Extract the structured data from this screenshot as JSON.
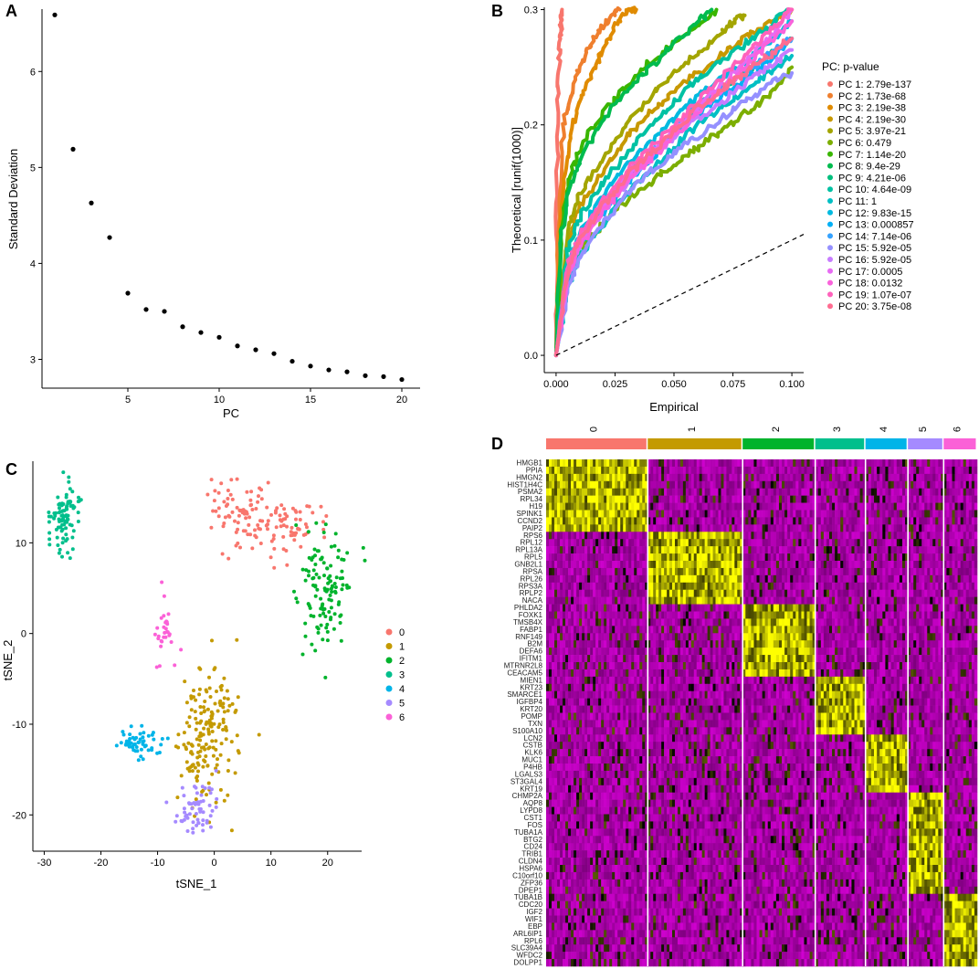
{
  "chart_data": [
    {
      "panel": "A",
      "type": "scatter",
      "title": "",
      "xlabel": "PC",
      "ylabel": "Standard Deviation",
      "xlim": [
        0.3,
        21.0
      ],
      "ylim": [
        2.7,
        6.65
      ],
      "xticks": [
        5,
        10,
        15,
        20
      ],
      "yticks": [
        3,
        4,
        5,
        6
      ],
      "x": [
        1,
        2,
        3,
        4,
        5,
        6,
        7,
        8,
        9,
        10,
        11,
        12,
        13,
        14,
        15,
        16,
        17,
        18,
        19,
        20
      ],
      "y": [
        6.59,
        5.19,
        4.63,
        4.27,
        3.69,
        3.52,
        3.5,
        3.34,
        3.28,
        3.23,
        3.14,
        3.1,
        3.06,
        2.98,
        2.93,
        2.89,
        2.87,
        2.83,
        2.82,
        2.79
      ],
      "color": "#000000"
    },
    {
      "panel": "B",
      "type": "line",
      "title": "",
      "xlabel": "Empirical",
      "ylabel": "Theoretical [runif(1000)]",
      "xlim": [
        -0.005,
        0.105
      ],
      "ylim": [
        -0.015,
        0.302
      ],
      "xticks": [
        "0.000",
        "0.025",
        "0.050",
        "0.075",
        "0.100"
      ],
      "yticks": [
        "0.0",
        "0.1",
        "0.2",
        "0.3"
      ],
      "legend_title": "PC: p-value",
      "reference_line": "dashed y = x",
      "series": [
        {
          "name": "PC 1: 2.79e-137",
          "color": "#F8766D",
          "x": [
            0,
            0.0003,
            0.0008,
            0.0013,
            0.0018,
            0.0022,
            0.0025
          ],
          "y": [
            0,
            0.12,
            0.22,
            0.26,
            0.28,
            0.29,
            0.3
          ]
        },
        {
          "name": "PC 2: 1.73e-68",
          "color": "#EF7F2E",
          "x": [
            0,
            0.002,
            0.004,
            0.007,
            0.011,
            0.016,
            0.022,
            0.027
          ],
          "y": [
            0,
            0.17,
            0.21,
            0.23,
            0.255,
            0.275,
            0.29,
            0.3
          ]
        },
        {
          "name": "PC 3: 2.19e-38",
          "color": "#E08B00",
          "x": [
            0,
            0.003,
            0.006,
            0.01,
            0.015,
            0.02,
            0.025,
            0.03,
            0.034
          ],
          "y": [
            0,
            0.15,
            0.19,
            0.22,
            0.245,
            0.265,
            0.285,
            0.298,
            0.3
          ]
        },
        {
          "name": "PC 4: 2.19e-30",
          "color": "#C79800",
          "x": [
            0,
            0.005,
            0.01,
            0.02,
            0.03,
            0.04,
            0.05,
            0.06,
            0.07,
            0.08,
            0.09,
            0.1
          ],
          "y": [
            0,
            0.1,
            0.13,
            0.16,
            0.19,
            0.21,
            0.23,
            0.245,
            0.26,
            0.275,
            0.288,
            0.3
          ]
        },
        {
          "name": "PC 5: 3.97e-21",
          "color": "#A3A500",
          "x": [
            0,
            0.005,
            0.01,
            0.02,
            0.03,
            0.04,
            0.05,
            0.06,
            0.07,
            0.075,
            0.08
          ],
          "y": [
            0,
            0.11,
            0.14,
            0.17,
            0.2,
            0.225,
            0.245,
            0.262,
            0.28,
            0.29,
            0.295
          ]
        },
        {
          "name": "PC 6: 0.479",
          "color": "#7CAE00",
          "x": [
            0,
            0.005,
            0.01,
            0.02,
            0.03,
            0.04,
            0.05,
            0.06,
            0.07,
            0.08,
            0.09,
            0.1
          ],
          "y": [
            0,
            0.07,
            0.09,
            0.115,
            0.135,
            0.15,
            0.165,
            0.18,
            0.195,
            0.21,
            0.225,
            0.25
          ]
        },
        {
          "name": "PC 7: 1.14e-20",
          "color": "#39B600",
          "x": [
            0,
            0.002,
            0.005,
            0.01,
            0.02,
            0.03,
            0.04,
            0.05,
            0.06,
            0.068
          ],
          "y": [
            0,
            0.11,
            0.15,
            0.18,
            0.21,
            0.235,
            0.255,
            0.27,
            0.285,
            0.3
          ]
        },
        {
          "name": "PC 8: 9.4e-29",
          "color": "#00BB4E",
          "x": [
            0,
            0.002,
            0.005,
            0.01,
            0.02,
            0.03,
            0.04,
            0.05,
            0.058,
            0.066
          ],
          "y": [
            0,
            0.1,
            0.14,
            0.17,
            0.205,
            0.23,
            0.25,
            0.27,
            0.285,
            0.3
          ]
        },
        {
          "name": "PC 9: 4.21e-06",
          "color": "#00BF7D",
          "x": [
            0,
            0.005,
            0.01,
            0.02,
            0.03,
            0.04,
            0.05,
            0.06,
            0.07,
            0.08,
            0.09,
            0.1
          ],
          "y": [
            0,
            0.07,
            0.095,
            0.13,
            0.155,
            0.175,
            0.195,
            0.215,
            0.23,
            0.245,
            0.26,
            0.275
          ]
        },
        {
          "name": "PC 10: 4.64e-09",
          "color": "#00C1A3",
          "x": [
            0,
            0.005,
            0.01,
            0.02,
            0.03,
            0.04,
            0.05,
            0.06,
            0.07,
            0.08,
            0.09,
            0.098
          ],
          "y": [
            0,
            0.09,
            0.12,
            0.15,
            0.175,
            0.2,
            0.22,
            0.24,
            0.255,
            0.27,
            0.285,
            0.3
          ]
        },
        {
          "name": "PC 11: 1",
          "color": "#00BFC4",
          "x": [
            0,
            0.005,
            0.01,
            0.02,
            0.03,
            0.04,
            0.05,
            0.06,
            0.07,
            0.08,
            0.09,
            0.1
          ],
          "y": [
            0,
            0.06,
            0.085,
            0.115,
            0.14,
            0.16,
            0.18,
            0.2,
            0.215,
            0.23,
            0.245,
            0.26
          ]
        },
        {
          "name": "PC 12: 9.83e-15",
          "color": "#00BAE0",
          "x": [
            0,
            0.005,
            0.01,
            0.02,
            0.03,
            0.04,
            0.05,
            0.06,
            0.07,
            0.08,
            0.09,
            0.1
          ],
          "y": [
            0,
            0.08,
            0.105,
            0.14,
            0.165,
            0.185,
            0.205,
            0.225,
            0.24,
            0.255,
            0.27,
            0.29
          ]
        },
        {
          "name": "PC 13: 0.000857",
          "color": "#00B0F6",
          "x": [
            0,
            0.005,
            0.01,
            0.02,
            0.03,
            0.04,
            0.05,
            0.06,
            0.07,
            0.08,
            0.09,
            0.1
          ],
          "y": [
            0,
            0.07,
            0.095,
            0.125,
            0.15,
            0.17,
            0.19,
            0.21,
            0.225,
            0.24,
            0.255,
            0.275
          ]
        },
        {
          "name": "PC 14: 7.14e-06",
          "color": "#35A2FF",
          "x": [
            0,
            0.005,
            0.01,
            0.02,
            0.03,
            0.04,
            0.05,
            0.06,
            0.07,
            0.08,
            0.09,
            0.1
          ],
          "y": [
            0,
            0.075,
            0.1,
            0.13,
            0.155,
            0.175,
            0.195,
            0.215,
            0.23,
            0.245,
            0.26,
            0.275
          ]
        },
        {
          "name": "PC 15: 5.92e-05",
          "color": "#9590FF",
          "x": [
            0,
            0.005,
            0.01,
            0.02,
            0.03,
            0.04,
            0.05,
            0.06,
            0.07,
            0.08,
            0.09,
            0.1
          ],
          "y": [
            0,
            0.06,
            0.085,
            0.115,
            0.14,
            0.16,
            0.175,
            0.19,
            0.205,
            0.22,
            0.235,
            0.245
          ]
        },
        {
          "name": "PC 16: 5.92e-05",
          "color": "#C77CFF",
          "x": [
            0,
            0.005,
            0.01,
            0.02,
            0.03,
            0.04,
            0.05,
            0.06,
            0.07,
            0.08,
            0.09,
            0.1
          ],
          "y": [
            0,
            0.07,
            0.095,
            0.125,
            0.15,
            0.17,
            0.19,
            0.205,
            0.22,
            0.235,
            0.25,
            0.265
          ]
        },
        {
          "name": "PC 17: 0.0005",
          "color": "#E76BF3",
          "x": [
            0,
            0.005,
            0.01,
            0.02,
            0.03,
            0.04,
            0.05,
            0.06,
            0.07,
            0.08,
            0.09,
            0.1
          ],
          "y": [
            0,
            0.075,
            0.1,
            0.13,
            0.155,
            0.175,
            0.195,
            0.215,
            0.235,
            0.255,
            0.275,
            0.3
          ]
        },
        {
          "name": "PC 18: 0.0132",
          "color": "#FA62DB",
          "x": [
            0,
            0.005,
            0.01,
            0.02,
            0.03,
            0.04,
            0.05,
            0.06,
            0.07,
            0.08,
            0.09,
            0.1
          ],
          "y": [
            0,
            0.07,
            0.095,
            0.125,
            0.15,
            0.17,
            0.19,
            0.21,
            0.23,
            0.25,
            0.27,
            0.29
          ]
        },
        {
          "name": "PC 19: 1.07e-07",
          "color": "#FF62BC",
          "x": [
            0,
            0.005,
            0.01,
            0.02,
            0.03,
            0.04,
            0.05,
            0.06,
            0.07,
            0.08,
            0.09,
            0.1
          ],
          "y": [
            0,
            0.08,
            0.105,
            0.135,
            0.16,
            0.18,
            0.2,
            0.22,
            0.24,
            0.26,
            0.28,
            0.3
          ]
        },
        {
          "name": "PC 20: 3.75e-08",
          "color": "#FF6C91",
          "x": [
            0,
            0.005,
            0.01,
            0.02,
            0.03,
            0.04,
            0.05,
            0.06,
            0.07,
            0.08,
            0.09,
            0.1
          ],
          "y": [
            0,
            0.075,
            0.1,
            0.13,
            0.155,
            0.175,
            0.195,
            0.215,
            0.23,
            0.245,
            0.26,
            0.275
          ]
        }
      ]
    },
    {
      "panel": "C",
      "type": "scatter",
      "title": "",
      "xlabel": "tSNE_1",
      "ylabel": "tSNE_2",
      "xlim": [
        -32,
        26
      ],
      "ylim": [
        -24,
        19
      ],
      "xticks": [
        -30,
        -20,
        -10,
        0,
        10,
        20
      ],
      "yticks": [
        -20,
        -10,
        0,
        10
      ],
      "legend_position": "right",
      "clusters": [
        {
          "name": "0",
          "color": "#F8766D",
          "centers": [
            [
              4,
              13.5,
              3.5,
              2.5,
              70
            ],
            [
              13,
              11.5,
              4.5,
              2,
              70
            ]
          ]
        },
        {
          "name": "1",
          "color": "#C49A00",
          "centers": [
            [
              -1,
              -10.5,
              3.5,
              5,
              150
            ],
            [
              -4,
              -14,
              1.8,
              3,
              25
            ]
          ]
        },
        {
          "name": "2",
          "color": "#00B32C",
          "centers": [
            [
              20,
              5,
              2.8,
              4.5,
              120
            ]
          ]
        },
        {
          "name": "3",
          "color": "#00BF8C",
          "centers": [
            [
              -26.5,
              13,
              1.7,
              3,
              90
            ]
          ]
        },
        {
          "name": "4",
          "color": "#00B4E8",
          "centers": [
            [
              -13.5,
              -12,
              3,
              1,
              55
            ]
          ]
        },
        {
          "name": "5",
          "color": "#A58AFF",
          "centers": [
            [
              -3.5,
              -19.5,
              2.5,
              2,
              60
            ]
          ]
        },
        {
          "name": "6",
          "color": "#FB61D7",
          "centers": [
            [
              -8.5,
              0,
              1.3,
              2.2,
              30
            ]
          ]
        }
      ]
    },
    {
      "panel": "D",
      "type": "heatmap",
      "title": "",
      "clusters": [
        {
          "name": "0",
          "color": "#F8766D",
          "cells": 91
        },
        {
          "name": "1",
          "color": "#C49A00",
          "cells": 85
        },
        {
          "name": "2",
          "color": "#00B32C",
          "cells": 65
        },
        {
          "name": "3",
          "color": "#00BF8C",
          "cells": 45
        },
        {
          "name": "4",
          "color": "#00B4E8",
          "cells": 38
        },
        {
          "name": "5",
          "color": "#A58AFF",
          "cells": 32
        },
        {
          "name": "6",
          "color": "#FB61D7",
          "cells": 30
        }
      ],
      "color_low": "#FF00FF",
      "color_mid": "#000000",
      "color_high": "#FFFF00",
      "genes": [
        "HMGB1",
        "PPIA",
        "HMGN2",
        "HIST1H4C",
        "PSMA2",
        "RPL34",
        "H19",
        "SPINK1",
        "CCND2",
        "PAIP2",
        "RPS6",
        "RPL12",
        "RPL13A",
        "RPL5",
        "GNB2L1",
        "RPSA",
        "RPL26",
        "RPS3A",
        "RPLP2",
        "NACA",
        "PHLDA2",
        "FOXK1",
        "TMSB4X",
        "FABP1",
        "RNF149",
        "B2M",
        "DEFA6",
        "IFITM1",
        "MTRNR2L8",
        "CEACAM5",
        "MIEN1",
        "KRT23",
        "SMARCE1",
        "IGFBP4",
        "KRT20",
        "POMP",
        "TXN",
        "S100A10",
        "LCN2",
        "CSTB",
        "KLK6",
        "MUC1",
        "P4HB",
        "LGALS3",
        "ST3GAL4",
        "KRT19",
        "CHMP2A",
        "AQP8",
        "LYPD8",
        "CST1",
        "FOS",
        "TUBA1A",
        "BTG2",
        "CD24",
        "TRIB1",
        "CLDN4",
        "HSPA6",
        "C10orf10",
        "ZFP36",
        "DPEP1",
        "TUBA1B",
        "CDC20",
        "IGF2",
        "WIF1",
        "EBP",
        "ARL6IP1",
        "RPL6",
        "SLC39A4",
        "WFDC2",
        "DOLPP1"
      ],
      "marker_blocks": [
        {
          "cluster": "0",
          "genes": [
            0,
            10
          ]
        },
        {
          "cluster": "1",
          "genes": [
            10,
            20
          ]
        },
        {
          "cluster": "2",
          "genes": [
            20,
            30
          ]
        },
        {
          "cluster": "3",
          "genes": [
            30,
            38
          ]
        },
        {
          "cluster": "4",
          "genes": [
            38,
            46
          ]
        },
        {
          "cluster": "5",
          "genes": [
            46,
            60
          ]
        },
        {
          "cluster": "6",
          "genes": [
            60,
            70
          ]
        }
      ]
    }
  ],
  "panels": {
    "a": "A",
    "b": "B",
    "c": "C",
    "d": "D"
  }
}
